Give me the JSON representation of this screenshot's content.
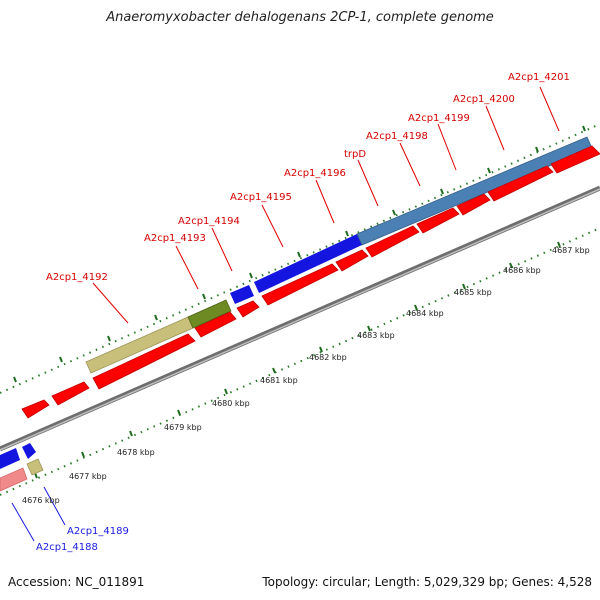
{
  "title": "Anaeromyxobacter dehalogenans 2CP-1, complete genome",
  "footer": {
    "accession": "Accession: NC_011891",
    "summary": "Topology: circular; Length: 5,029,329 bp; Genes: 4,528"
  },
  "colors": {
    "forward_label": "#d40000",
    "reverse_label": "#1a1adf",
    "cds_red": "#ff0000",
    "gene_blue": "#1515e0",
    "gene_steel": "#4a80b4",
    "gene_olive": "#6e8a22",
    "gene_khaki": "#c8c07a",
    "gene_pink": "#f08a8a",
    "backbone": "#8a8a8a",
    "tick_green": "#2b7a2b"
  },
  "genes_top_labels": [
    "A2cp1_4192",
    "A2cp1_4193",
    "A2cp1_4194",
    "A2cp1_4195",
    "A2cp1_4196",
    "trpD",
    "A2cp1_4198",
    "A2cp1_4199",
    "A2cp1_4200",
    "A2cp1_4201"
  ],
  "genes_bottom_labels": [
    "A2cp1_4188",
    "A2cp1_4189"
  ],
  "kbp_labels": [
    "4676 kbp",
    "4677 kbp",
    "4678 kbp",
    "4679 kbp",
    "4680 kbp",
    "4681 kbp",
    "4682 kbp",
    "4683 kbp",
    "4684 kbp",
    "4685 kbp",
    "4686 kbp",
    "4687 kbp"
  ]
}
